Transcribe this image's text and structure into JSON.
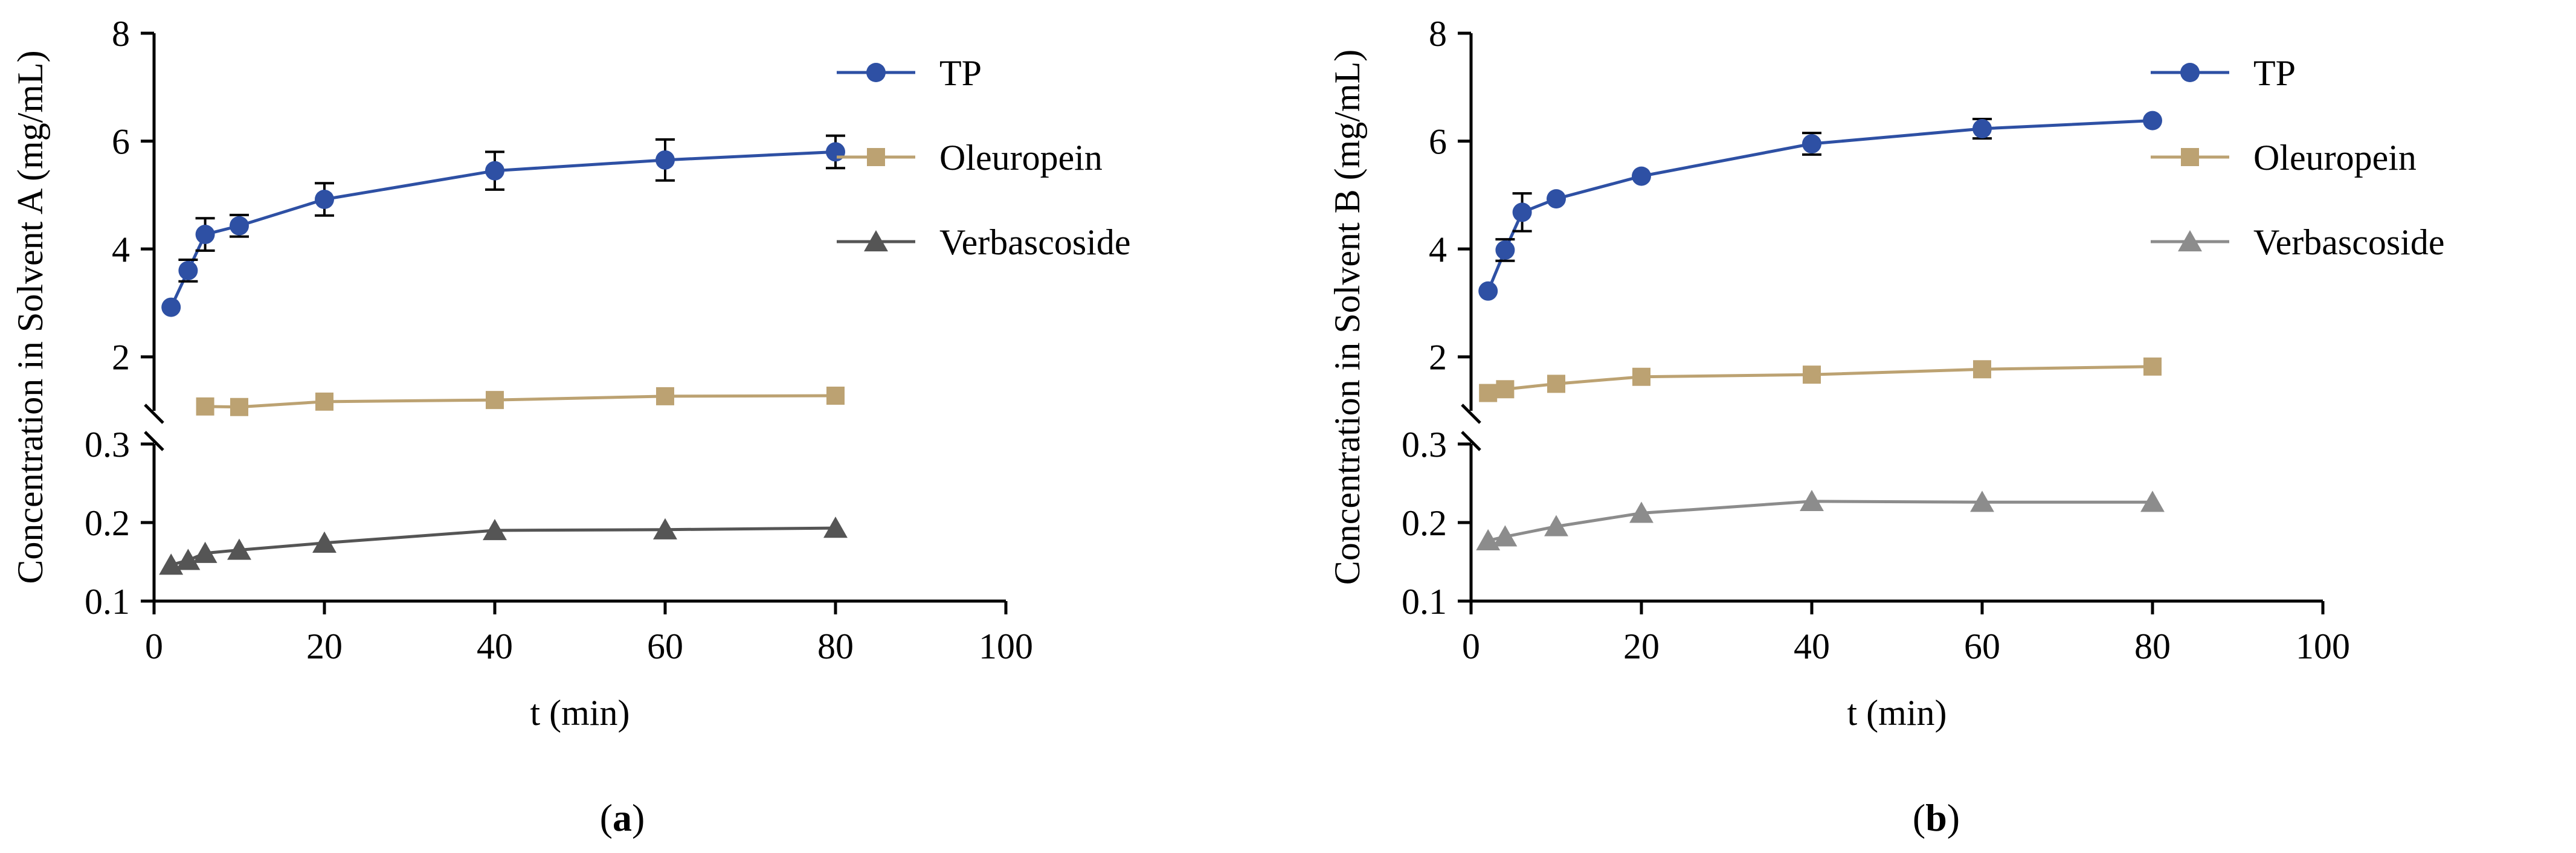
{
  "chart_data": [
    {
      "type": "line",
      "panel_label": "a",
      "title": "",
      "xlabel": "t (min)",
      "ylabel": "Concentration in Solvent A (mg/mL)",
      "xlim": [
        0,
        100
      ],
      "x_ticks": [
        "0",
        "20",
        "40",
        "60",
        "80",
        "100"
      ],
      "y_upper_range": [
        1,
        8
      ],
      "y_upper_ticks": [
        "2",
        "4",
        "6",
        "8"
      ],
      "y_lower_range": [
        0.1,
        0.3
      ],
      "y_lower_ticks": [
        "0.1",
        "0.2",
        "0.3"
      ],
      "axis_break": "between 1 (upper segment) and 0.3 (lower segment)",
      "legend_position": "top-right",
      "series": [
        {
          "name": "TP",
          "segment": "upper",
          "marker": "circle",
          "color": "#2E50A4",
          "x": [
            2,
            4,
            6,
            10,
            20,
            40,
            60,
            80
          ],
          "y": [
            2.92,
            3.6,
            4.27,
            4.43,
            4.92,
            5.45,
            5.65,
            5.8
          ],
          "err": [
            0,
            0.2,
            0.3,
            0.2,
            0.3,
            0.35,
            0.38,
            0.3
          ]
        },
        {
          "name": "Oleuropein",
          "segment": "upper",
          "marker": "square",
          "color": "#BCA272",
          "x": [
            6,
            10,
            20,
            40,
            60,
            80
          ],
          "y": [
            1.08,
            1.07,
            1.17,
            1.2,
            1.27,
            1.28
          ],
          "err": [
            0,
            0,
            0,
            0,
            0,
            0
          ]
        },
        {
          "name": "Verbascoside",
          "segment": "lower",
          "marker": "triangle",
          "color": "#555555",
          "x": [
            2,
            4,
            6,
            10,
            20,
            40,
            60,
            80
          ],
          "y": [
            0.146,
            0.152,
            0.161,
            0.165,
            0.174,
            0.19,
            0.191,
            0.193
          ],
          "err": [
            0,
            0,
            0,
            0,
            0,
            0,
            0,
            0
          ]
        }
      ]
    },
    {
      "type": "line",
      "panel_label": "b",
      "title": "",
      "xlabel": "t (min)",
      "ylabel": "Concentration in Solvent  B (mg/mL)",
      "xlim": [
        0,
        100
      ],
      "x_ticks": [
        "0",
        "20",
        "40",
        "60",
        "80",
        "100"
      ],
      "y_upper_range": [
        1,
        8
      ],
      "y_upper_ticks": [
        "2",
        "4",
        "6",
        "8"
      ],
      "y_lower_range": [
        0.1,
        0.3
      ],
      "y_lower_ticks": [
        "0.1",
        "0.2",
        "0.3"
      ],
      "axis_break": "between 1 (upper segment) and 0.3 (lower segment)",
      "legend_position": "top-right",
      "series": [
        {
          "name": "TP",
          "segment": "upper",
          "marker": "circle",
          "color": "#2E50A4",
          "x": [
            2,
            4,
            6,
            10,
            20,
            40,
            60,
            80
          ],
          "y": [
            3.22,
            3.98,
            4.68,
            4.93,
            5.35,
            5.95,
            6.23,
            6.38
          ],
          "err": [
            0,
            0.2,
            0.35,
            0,
            0,
            0.2,
            0.18,
            0
          ]
        },
        {
          "name": "Oleuropein",
          "segment": "upper",
          "marker": "square",
          "color": "#BCA272",
          "x": [
            2,
            4,
            10,
            20,
            40,
            60,
            80
          ],
          "y": [
            1.33,
            1.4,
            1.5,
            1.63,
            1.67,
            1.77,
            1.82
          ],
          "err": [
            0,
            0,
            0,
            0,
            0,
            0,
            0
          ]
        },
        {
          "name": "Verbascoside",
          "segment": "lower",
          "marker": "triangle",
          "color": "#8C8C8C",
          "x": [
            2,
            4,
            10,
            20,
            40,
            60,
            80
          ],
          "y": [
            0.177,
            0.182,
            0.195,
            0.212,
            0.227,
            0.226,
            0.226
          ],
          "err": [
            0,
            0,
            0,
            0,
            0,
            0,
            0
          ]
        }
      ]
    }
  ]
}
